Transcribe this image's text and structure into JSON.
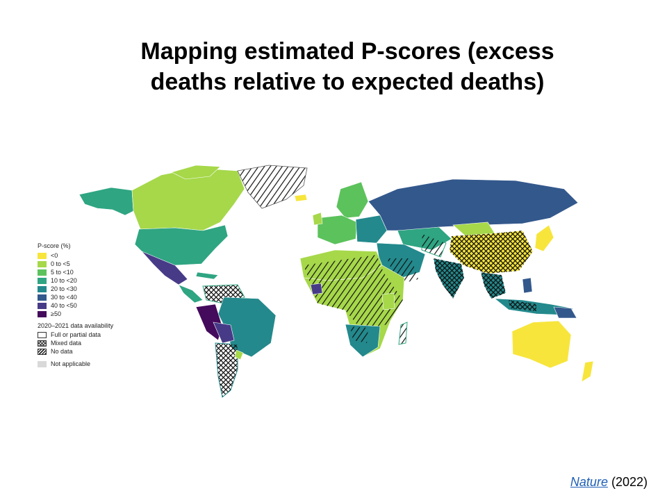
{
  "title": {
    "line1": "Mapping estimated P-scores (excess",
    "line2": "deaths relative to expected deaths)"
  },
  "legend": {
    "title": "P-score (%)",
    "bins": [
      {
        "label": "<0",
        "color": "#f7e53c"
      },
      {
        "label": "0 to <5",
        "color": "#a6d84a"
      },
      {
        "label": "5 to <10",
        "color": "#5cc25c"
      },
      {
        "label": "10 to <20",
        "color": "#2fa582"
      },
      {
        "label": "20 to <30",
        "color": "#23898c"
      },
      {
        "label": "30 to <40",
        "color": "#33588c"
      },
      {
        "label": "40 to <50",
        "color": "#473b88"
      },
      {
        "label": "≥50",
        "color": "#440a5c"
      }
    ],
    "availability_title": "2020–2021 data availability",
    "availability": [
      {
        "label": "Full or partial data",
        "pattern": "none"
      },
      {
        "label": "Mixed data",
        "pattern": "crosshatch"
      },
      {
        "label": "No data",
        "pattern": "stripes"
      }
    ],
    "not_applicable": {
      "label": "Not applicable",
      "color": "#d9d9d9"
    }
  },
  "citation": {
    "source": "Nature",
    "year": "(2022)"
  }
}
